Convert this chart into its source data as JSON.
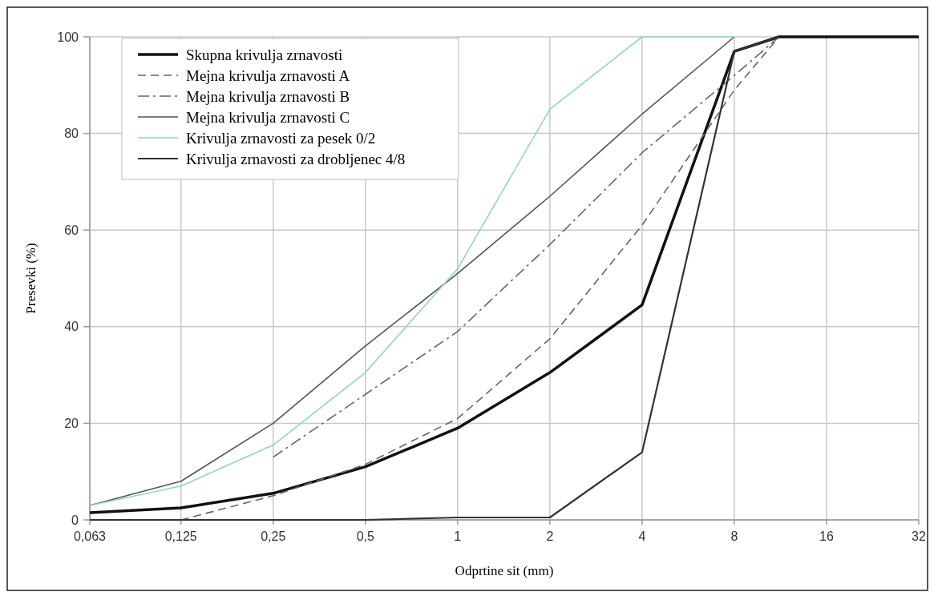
{
  "chart_data": {
    "type": "line",
    "xlabel": "Odprtine sit (mm)",
    "ylabel": "Presevki (%)",
    "log": "x",
    "xlim": [
      0.063,
      32
    ],
    "xticks": [
      {
        "value": 0.063,
        "label": "0,063"
      },
      {
        "value": 0.125,
        "label": "0,125"
      },
      {
        "value": 0.25,
        "label": "0,25"
      },
      {
        "value": 0.5,
        "label": "0,5"
      },
      1,
      2,
      4,
      8,
      16,
      32
    ],
    "ylim": [
      0,
      100
    ],
    "yticks": [
      0,
      20,
      40,
      60,
      80,
      100
    ],
    "grid": true,
    "legend": "top left",
    "marker": "none",
    "series": [
      {
        "name": "Skupna krivulja zrnavosti",
        "color": "#111111",
        "line_style": "solid",
        "x": [
          0.063,
          0.125,
          0.25,
          0.5,
          1,
          2,
          4,
          8,
          11.2,
          16,
          32
        ],
        "values": [
          1.5,
          2.5,
          5.5,
          11,
          19,
          30.5,
          44.5,
          97,
          100,
          100,
          100
        ]
      },
      {
        "name": "Mejna krivulja zrnavosti A",
        "color": "#666666",
        "line_style": "dashed",
        "x": [
          0.125,
          0.25,
          0.5,
          1,
          2,
          4,
          8,
          11.2
        ],
        "values": [
          0,
          5,
          11.5,
          21,
          37.5,
          61,
          89,
          100
        ]
      },
      {
        "name": "Mejna krivulja zrnavosti B",
        "color": "#666666",
        "line_style": "dashdot",
        "x": [
          0.25,
          0.5,
          1,
          2,
          4,
          8,
          11.2
        ],
        "values": [
          13,
          26,
          39,
          57,
          76,
          92,
          100
        ]
      },
      {
        "name": "Mejna krivulja zrnavosti C",
        "color": "#555555",
        "line_style": "solid",
        "x": [
          0.063,
          0.125,
          0.25,
          0.5,
          1,
          2,
          4,
          8
        ],
        "values": [
          3,
          8,
          20,
          36,
          51,
          67,
          84,
          100
        ]
      },
      {
        "name": "Krivulja zrnavosti za pesek 0/2",
        "color": "#8fd6c9",
        "line_style": "solid",
        "x": [
          0.063,
          0.125,
          0.25,
          0.5,
          1,
          2,
          4,
          8
        ],
        "values": [
          3,
          7,
          15.5,
          30.5,
          52,
          85,
          100,
          100
        ]
      },
      {
        "name": "Krivulja zrnavosti za drobljenec 4/8",
        "color": "#333333",
        "line_style": "solid",
        "x": [
          0.063,
          0.125,
          0.25,
          0.5,
          1,
          2,
          4,
          8,
          11.2
        ],
        "values": [
          0,
          0,
          0,
          0,
          0.5,
          0.5,
          14,
          97,
          100
        ]
      }
    ]
  }
}
